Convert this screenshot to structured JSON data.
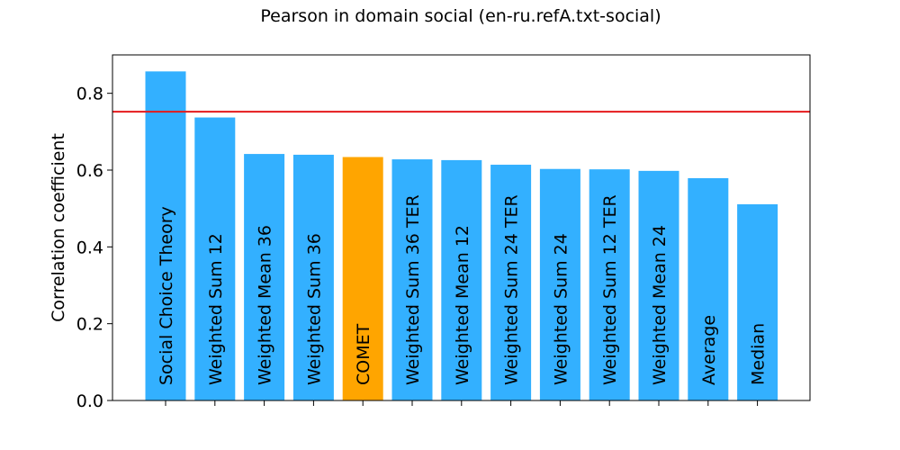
{
  "chart_data": {
    "type": "bar",
    "title": "Pearson in domain social (en-ru.refA.txt-social)",
    "xlabel": "",
    "ylabel": "Correlation coefficient",
    "ylim": [
      0,
      0.9
    ],
    "yticks": [
      0.0,
      0.2,
      0.4,
      0.6,
      0.8
    ],
    "ytick_labels": [
      "0.0",
      "0.2",
      "0.4",
      "0.6",
      "0.8"
    ],
    "reference_line": {
      "value": 0.752,
      "color": "#e41a1c"
    },
    "categories": [
      "Social Choice Theory",
      "Weighted Sum 12",
      "Weighted Mean 36",
      "Weighted Sum 36",
      "COMET",
      "Weighted Sum 36 TER",
      "Weighted Mean 12",
      "Weighted Sum 24 TER",
      "Weighted Sum 24",
      "Weighted Sum 12 TER",
      "Weighted Mean 24",
      "Average",
      "Median"
    ],
    "values": [
      0.857,
      0.737,
      0.642,
      0.64,
      0.634,
      0.628,
      0.626,
      0.614,
      0.603,
      0.602,
      0.598,
      0.579,
      0.511
    ],
    "colors": [
      "#33b0ff",
      "#33b0ff",
      "#33b0ff",
      "#33b0ff",
      "#ffa500",
      "#33b0ff",
      "#33b0ff",
      "#33b0ff",
      "#33b0ff",
      "#33b0ff",
      "#33b0ff",
      "#33b0ff",
      "#33b0ff"
    ],
    "grid": false,
    "legend": "none"
  }
}
